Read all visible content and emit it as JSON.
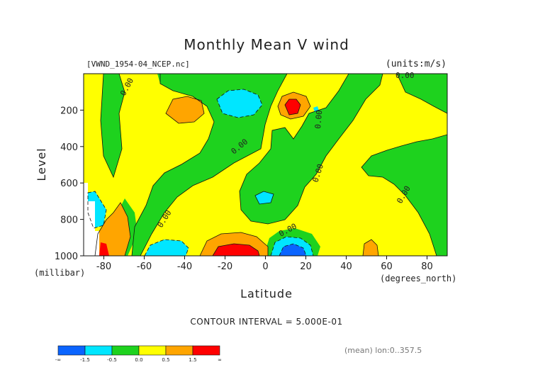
{
  "chart_data": {
    "type": "heatmap",
    "title": "Monthly Mean V wind",
    "subtitle_left": "[VWND_1954-04_NCEP.nc]",
    "units": "(units:m/s)",
    "xlabel": "Latitude",
    "xunit": "(degrees_north)",
    "ylabel": "Level",
    "yunit": "(millibar)",
    "xlim": [
      -90,
      90
    ],
    "ylim": [
      1000,
      0
    ],
    "xticks": [
      "-80",
      "-60",
      "-40",
      "-20",
      "0",
      "20",
      "40",
      "60",
      "80"
    ],
    "yticks": [
      "200",
      "400",
      "600",
      "800",
      "1000"
    ],
    "contour_interval_text": "CONTOUR INTERVAL = 5.000E-01",
    "footnote": "(mean) lon:0..357.5",
    "contour_labels": [
      "0.00",
      "0.00",
      "0.00",
      "0.00",
      "0.00",
      "0.00",
      "0.00",
      "0.00"
    ],
    "colorbar": {
      "labels": [
        "-∞",
        "-1.5",
        "-0.5",
        "0.0",
        "0.5",
        "1.5",
        "∞"
      ],
      "colors": [
        "#0a64ff",
        "#00e6ff",
        "#1ed21e",
        "#ffff00",
        "#ffa500",
        "#ff0000"
      ]
    },
    "background_color": "#ffff00",
    "regions": [
      {
        "name": "green-band-80S",
        "color": "#1ed21e",
        "range": [
          -0.5,
          0.0
        ]
      },
      {
        "name": "green-jet-wide",
        "color": "#1ed21e",
        "range": [
          -0.5,
          0.0
        ]
      },
      {
        "name": "green-band-20N",
        "color": "#1ed21e",
        "range": [
          -0.5,
          0.0
        ]
      },
      {
        "name": "green-north-cap",
        "color": "#1ed21e",
        "range": [
          -0.5,
          0.0
        ]
      },
      {
        "name": "green-surface-south",
        "color": "#1ed21e",
        "range": [
          -0.5,
          0.0
        ]
      },
      {
        "name": "cyan-upper-30S",
        "color": "#00e6ff",
        "range": [
          -1.5,
          -0.5
        ]
      },
      {
        "name": "cyan-mid-0",
        "color": "#00e6ff",
        "range": [
          -1.5,
          -0.5
        ]
      },
      {
        "name": "cyan-surface-55S",
        "color": "#00e6ff",
        "range": [
          -1.5,
          -0.5
        ]
      },
      {
        "name": "cyan-surface-12N",
        "color": "#00e6ff",
        "range": [
          -1.5,
          -0.5
        ]
      },
      {
        "name": "cyan-surface-85S",
        "color": "#00e6ff",
        "range": [
          -1.5,
          -0.5
        ]
      },
      {
        "name": "blue-surface-12N",
        "color": "#0a64ff",
        "range": [
          -99,
          -1.5
        ]
      },
      {
        "name": "orange-upper-70S",
        "color": "#ffa500",
        "range": [
          0.5,
          1.5
        ]
      },
      {
        "name": "orange-upper-12N",
        "color": "#ffa500",
        "range": [
          0.5,
          1.5
        ]
      },
      {
        "name": "orange-surface-20S",
        "color": "#ffa500",
        "range": [
          0.5,
          1.5
        ]
      },
      {
        "name": "orange-surface-80S",
        "color": "#ffa500",
        "range": [
          0.5,
          1.5
        ]
      },
      {
        "name": "orange-surface-50N",
        "color": "#ffa500",
        "range": [
          0.5,
          1.5
        ]
      },
      {
        "name": "red-upper-12N",
        "color": "#ff0000",
        "range": [
          1.5,
          99
        ]
      },
      {
        "name": "red-surface-20S",
        "color": "#ff0000",
        "range": [
          1.5,
          99
        ]
      },
      {
        "name": "red-surface-84S",
        "color": "#ff0000",
        "range": [
          1.5,
          99
        ]
      }
    ]
  }
}
